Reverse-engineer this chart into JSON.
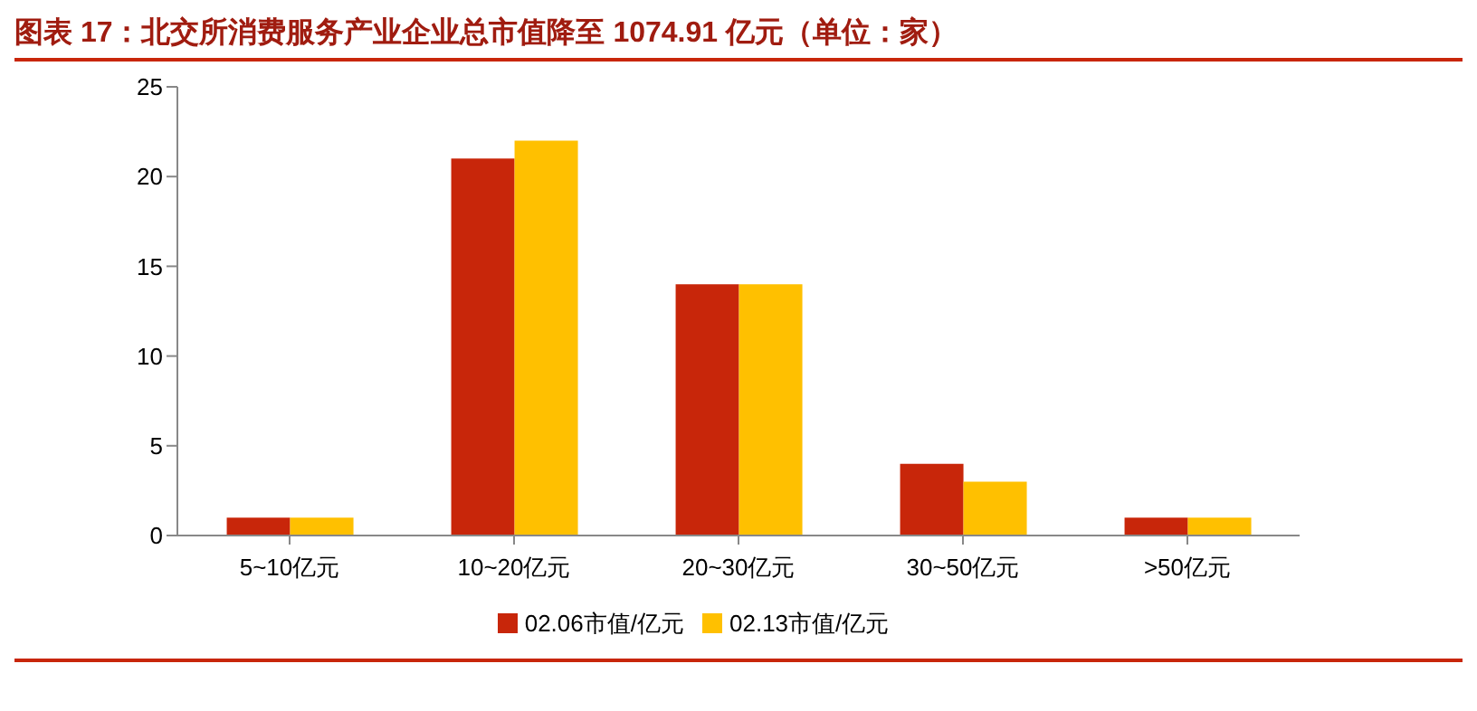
{
  "chart_data": {
    "type": "bar",
    "title": "图表 17：北交所消费服务产业企业总市值降至 1074.91 亿元（单位：家）",
    "categories": [
      "5~10亿元",
      "10~20亿元",
      "20~30亿元",
      "30~50亿元",
      ">50亿元"
    ],
    "series": [
      {
        "name": "02.06市值/亿元",
        "color": "#c8260a",
        "values": [
          1,
          21,
          14,
          4,
          1
        ]
      },
      {
        "name": "02.13市值/亿元",
        "color": "#ffc000",
        "values": [
          1,
          22,
          14,
          3,
          1
        ]
      }
    ],
    "ylim": [
      0,
      25
    ],
    "yticks": [
      0,
      5,
      10,
      15,
      20,
      25
    ],
    "grid": false,
    "legend": "bottom"
  }
}
